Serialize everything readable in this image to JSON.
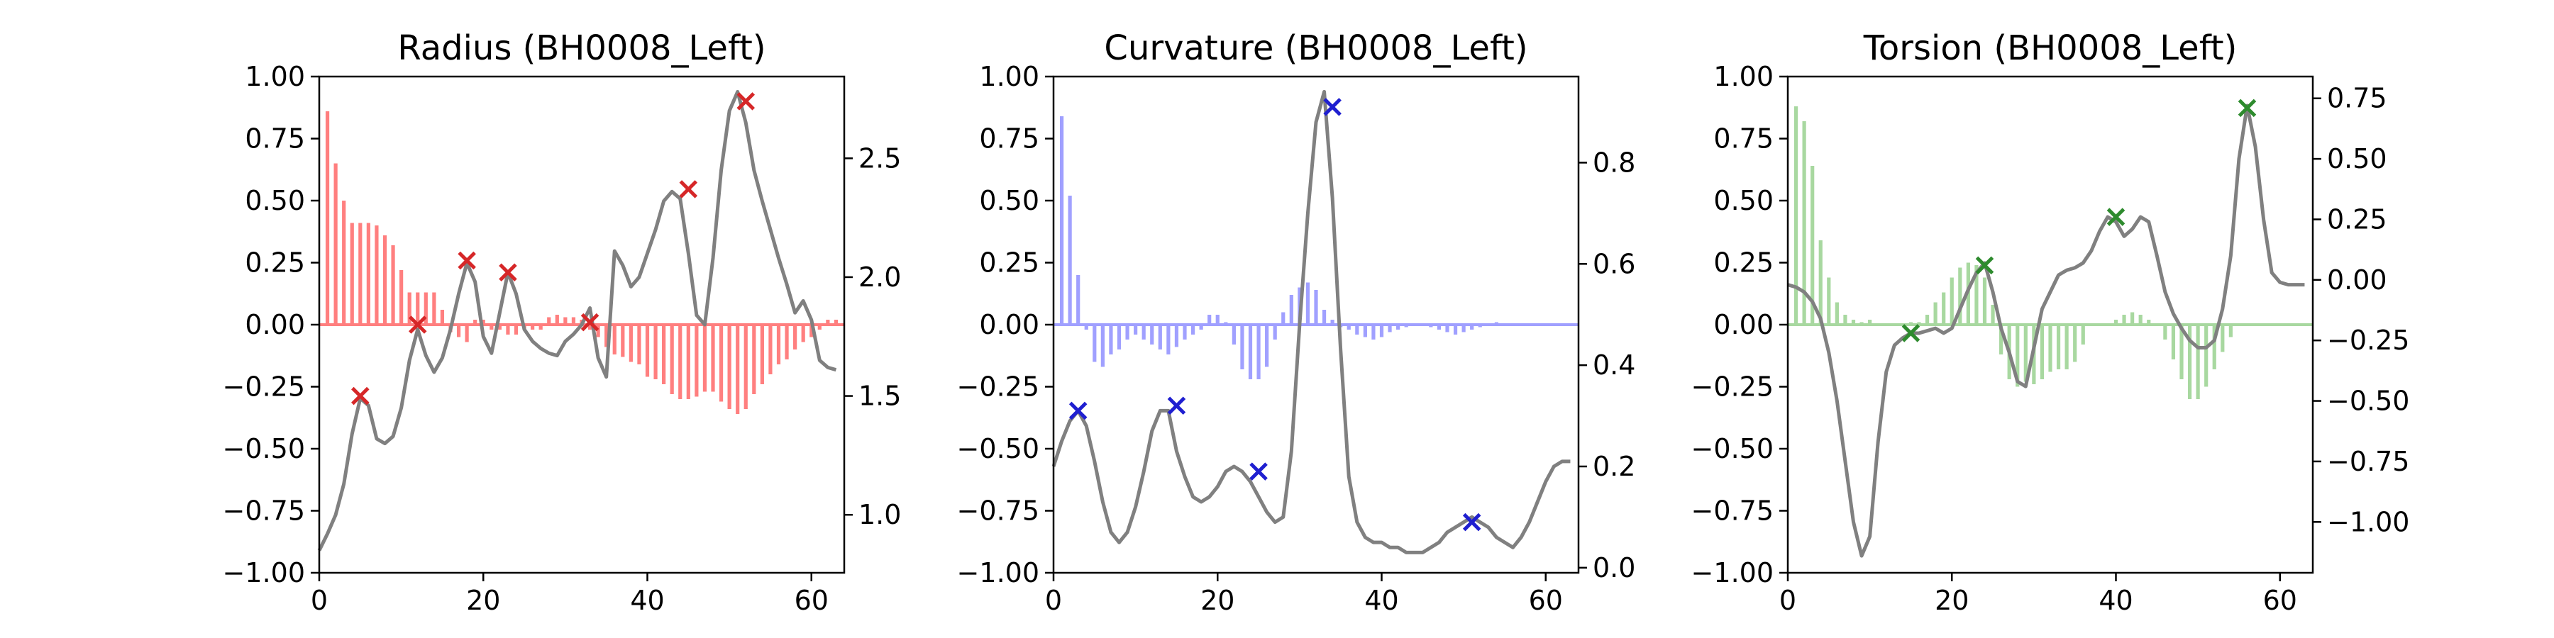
{
  "chart_data": [
    {
      "type": "bar",
      "title": "Radius (BH0008_Left)",
      "xlim": [
        0,
        64
      ],
      "ylim": [
        -1.0,
        1.0
      ],
      "xticks": [
        0,
        20,
        40,
        60
      ],
      "yticks": [
        -1.0,
        -0.75,
        -0.5,
        -0.25,
        0.0,
        0.25,
        0.5,
        0.75,
        1.0
      ],
      "ytick_labels": [
        "−1.00",
        "−0.75",
        "−0.50",
        "−0.25",
        "0.00",
        "0.25",
        "0.50",
        "0.75",
        "1.00"
      ],
      "bar_color": "#ff7f7f",
      "bars": {
        "x": [
          1,
          2,
          3,
          4,
          5,
          6,
          7,
          8,
          9,
          10,
          11,
          12,
          13,
          14,
          15,
          16,
          17,
          18,
          19,
          20,
          21,
          22,
          23,
          24,
          25,
          26,
          27,
          28,
          29,
          30,
          31,
          32,
          33,
          34,
          35,
          36,
          37,
          38,
          39,
          40,
          41,
          42,
          43,
          44,
          45,
          46,
          47,
          48,
          49,
          50,
          51,
          52,
          53,
          54,
          55,
          56,
          57,
          58,
          59,
          60,
          61,
          62,
          63
        ],
        "values": [
          0.86,
          0.65,
          0.5,
          0.41,
          0.41,
          0.41,
          0.4,
          0.36,
          0.32,
          0.22,
          0.13,
          0.13,
          0.13,
          0.13,
          0.06,
          -0.03,
          -0.05,
          -0.07,
          0.02,
          0.02,
          -0.02,
          -0.02,
          -0.04,
          -0.04,
          -0.02,
          -0.02,
          -0.02,
          0.03,
          0.04,
          0.03,
          0.03,
          0.02,
          -0.02,
          -0.05,
          -0.09,
          -0.12,
          -0.13,
          -0.15,
          -0.16,
          -0.21,
          -0.22,
          -0.24,
          -0.28,
          -0.3,
          -0.3,
          -0.29,
          -0.27,
          -0.27,
          -0.31,
          -0.34,
          -0.36,
          -0.34,
          -0.28,
          -0.24,
          -0.2,
          -0.16,
          -0.14,
          -0.1,
          -0.07,
          -0.05,
          -0.02,
          0.02,
          0.02
        ]
      },
      "y2lim": [
        0.756,
        2.844
      ],
      "y2ticks": [
        1.0,
        1.5,
        2.0,
        2.5
      ],
      "y2tick_labels": [
        "1.0",
        "1.5",
        "2.0",
        "2.5"
      ],
      "line_color": "#808080",
      "line": {
        "x": [
          0,
          1,
          2,
          3,
          4,
          5,
          6,
          7,
          8,
          9,
          10,
          11,
          12,
          13,
          14,
          15,
          16,
          17,
          18,
          19,
          20,
          21,
          22,
          23,
          24,
          25,
          26,
          27,
          28,
          29,
          30,
          31,
          32,
          33,
          34,
          35,
          36,
          37,
          38,
          39,
          40,
          41,
          42,
          43,
          44,
          45,
          46,
          47,
          48,
          49,
          50,
          51,
          52,
          53,
          54,
          55,
          56,
          57,
          58,
          59,
          60,
          61,
          62,
          63
        ],
        "y": [
          0.85,
          0.92,
          1.0,
          1.13,
          1.34,
          1.49,
          1.46,
          1.32,
          1.3,
          1.33,
          1.45,
          1.65,
          1.78,
          1.67,
          1.6,
          1.66,
          1.78,
          1.93,
          2.06,
          1.98,
          1.75,
          1.68,
          1.85,
          2.02,
          1.93,
          1.78,
          1.73,
          1.7,
          1.68,
          1.67,
          1.73,
          1.76,
          1.8,
          1.87,
          1.66,
          1.58,
          2.11,
          2.05,
          1.96,
          2.0,
          2.1,
          2.2,
          2.32,
          2.36,
          2.33,
          2.1,
          1.84,
          1.8,
          2.08,
          2.45,
          2.7,
          2.78,
          2.65,
          2.45,
          2.32,
          2.2,
          2.08,
          1.97,
          1.85,
          1.9,
          1.82,
          1.65,
          1.62,
          1.61
        ]
      },
      "marker_color": "#d62728",
      "markers": {
        "x": [
          5,
          12,
          18,
          23,
          33,
          45,
          52
        ],
        "y2": [
          1.5,
          1.8,
          2.07,
          2.02,
          1.81,
          2.37,
          2.74
        ]
      }
    },
    {
      "type": "bar",
      "title": "Curvature (BH0008_Left)",
      "xlim": [
        0,
        64
      ],
      "ylim": [
        -1.0,
        1.0
      ],
      "xticks": [
        0,
        20,
        40,
        60
      ],
      "yticks": [
        -1.0,
        -0.75,
        -0.5,
        -0.25,
        0.0,
        0.25,
        0.5,
        0.75,
        1.0
      ],
      "ytick_labels": [
        "−1.00",
        "−0.75",
        "−0.50",
        "−0.25",
        "0.00",
        "0.25",
        "0.50",
        "0.75",
        "1.00"
      ],
      "bar_color": "#a0a0ff",
      "bars": {
        "x": [
          1,
          2,
          3,
          4,
          5,
          6,
          7,
          8,
          9,
          10,
          11,
          12,
          13,
          14,
          15,
          16,
          17,
          18,
          19,
          20,
          21,
          22,
          23,
          24,
          25,
          26,
          27,
          28,
          29,
          30,
          31,
          32,
          33,
          34,
          35,
          36,
          37,
          38,
          39,
          40,
          41,
          42,
          43,
          44,
          45,
          46,
          47,
          48,
          49,
          50,
          51,
          52,
          53,
          54,
          55,
          56,
          57,
          58,
          59,
          60,
          61,
          62,
          63
        ],
        "values": [
          0.84,
          0.52,
          0.2,
          -0.02,
          -0.15,
          -0.17,
          -0.12,
          -0.1,
          -0.06,
          -0.04,
          -0.06,
          -0.08,
          -0.1,
          -0.12,
          -0.09,
          -0.06,
          -0.04,
          -0.02,
          0.04,
          0.04,
          0.01,
          -0.08,
          -0.18,
          -0.22,
          -0.22,
          -0.17,
          -0.06,
          0.05,
          0.12,
          0.15,
          0.17,
          0.14,
          0.06,
          0.02,
          -0.01,
          -0.02,
          -0.04,
          -0.05,
          -0.06,
          -0.05,
          -0.03,
          -0.02,
          -0.01,
          0.0,
          0.0,
          -0.01,
          -0.02,
          -0.03,
          -0.04,
          -0.03,
          -0.02,
          -0.01,
          0.0,
          0.01,
          0.0,
          0.0,
          0.0,
          0.0,
          0.0,
          0.0,
          0.0,
          0.0,
          0.0
        ]
      },
      "y2lim": [
        -0.01,
        0.97
      ],
      "y2ticks": [
        0.0,
        0.2,
        0.4,
        0.6,
        0.8
      ],
      "y2tick_labels": [
        "0.0",
        "0.2",
        "0.4",
        "0.6",
        "0.8"
      ],
      "line_color": "#808080",
      "line": {
        "x": [
          0,
          1,
          2,
          3,
          4,
          5,
          6,
          7,
          8,
          9,
          10,
          11,
          12,
          13,
          14,
          15,
          16,
          17,
          18,
          19,
          20,
          21,
          22,
          23,
          24,
          25,
          26,
          27,
          28,
          29,
          30,
          31,
          32,
          33,
          34,
          35,
          36,
          37,
          38,
          39,
          40,
          41,
          42,
          43,
          44,
          45,
          46,
          47,
          48,
          49,
          50,
          51,
          52,
          53,
          54,
          55,
          56,
          57,
          58,
          59,
          60,
          61,
          62,
          63
        ],
        "y": [
          0.2,
          0.25,
          0.29,
          0.31,
          0.28,
          0.21,
          0.13,
          0.07,
          0.05,
          0.07,
          0.12,
          0.19,
          0.27,
          0.31,
          0.31,
          0.23,
          0.18,
          0.14,
          0.13,
          0.14,
          0.16,
          0.19,
          0.2,
          0.19,
          0.17,
          0.14,
          0.11,
          0.09,
          0.1,
          0.23,
          0.48,
          0.7,
          0.88,
          0.94,
          0.73,
          0.43,
          0.18,
          0.09,
          0.06,
          0.05,
          0.05,
          0.04,
          0.04,
          0.03,
          0.03,
          0.03,
          0.04,
          0.05,
          0.07,
          0.08,
          0.09,
          0.1,
          0.09,
          0.08,
          0.06,
          0.05,
          0.04,
          0.06,
          0.09,
          0.13,
          0.17,
          0.2,
          0.21,
          0.21
        ]
      },
      "marker_color": "#1f1fd0",
      "markers": {
        "x": [
          3,
          15,
          25,
          34,
          51
        ],
        "y2": [
          0.31,
          0.32,
          0.19,
          0.91,
          0.09
        ]
      }
    },
    {
      "type": "bar",
      "title": "Torsion (BH0008_Left)",
      "xlim": [
        0,
        64
      ],
      "ylim": [
        -1.0,
        1.0
      ],
      "xticks": [
        0,
        20,
        40,
        60
      ],
      "yticks": [
        -1.0,
        -0.75,
        -0.5,
        -0.25,
        0.0,
        0.25,
        0.5,
        0.75,
        1.0
      ],
      "ytick_labels": [
        "−1.00",
        "−0.75",
        "−0.50",
        "−0.25",
        "0.00",
        "0.25",
        "0.50",
        "0.75",
        "1.00"
      ],
      "bar_color": "#a8d8a0",
      "bars": {
        "x": [
          1,
          2,
          3,
          4,
          5,
          6,
          7,
          8,
          9,
          10,
          11,
          12,
          13,
          14,
          15,
          16,
          17,
          18,
          19,
          20,
          21,
          22,
          23,
          24,
          25,
          26,
          27,
          28,
          29,
          30,
          31,
          32,
          33,
          34,
          35,
          36,
          37,
          38,
          39,
          40,
          41,
          42,
          43,
          44,
          45,
          46,
          47,
          48,
          49,
          50,
          51,
          52,
          53,
          54,
          55,
          56,
          57,
          58,
          59,
          60,
          61,
          62,
          63
        ],
        "values": [
          0.88,
          0.82,
          0.64,
          0.34,
          0.19,
          0.09,
          0.04,
          0.02,
          0.01,
          0.02,
          0.0,
          0.0,
          0.0,
          0.0,
          0.01,
          0.01,
          0.04,
          0.09,
          0.13,
          0.19,
          0.23,
          0.25,
          0.24,
          0.19,
          0.08,
          -0.12,
          -0.22,
          -0.25,
          -0.23,
          -0.24,
          -0.22,
          -0.19,
          -0.18,
          -0.18,
          -0.15,
          -0.08,
          0.0,
          0.0,
          0.0,
          0.02,
          0.04,
          0.05,
          0.04,
          0.02,
          0.0,
          -0.06,
          -0.14,
          -0.22,
          -0.3,
          -0.3,
          -0.25,
          -0.18,
          -0.11,
          -0.05,
          0.0,
          0.0,
          0.0,
          0.0,
          0.0,
          0.0,
          0.0,
          0.0,
          0.0
        ]
      },
      "y2lim": [
        -1.21,
        0.84
      ],
      "y2ticks": [
        -1.0,
        -0.75,
        -0.5,
        -0.25,
        0.0,
        0.25,
        0.5,
        0.75
      ],
      "y2tick_labels": [
        "−1.00",
        "−0.75",
        "−0.50",
        "−0.25",
        "0.00",
        "0.25",
        "0.50",
        "0.75"
      ],
      "line_color": "#808080",
      "line": {
        "x": [
          0,
          1,
          2,
          3,
          4,
          5,
          6,
          7,
          8,
          9,
          10,
          11,
          12,
          13,
          14,
          15,
          16,
          17,
          18,
          19,
          20,
          21,
          22,
          23,
          24,
          25,
          26,
          27,
          28,
          29,
          30,
          31,
          32,
          33,
          34,
          35,
          36,
          37,
          38,
          39,
          40,
          41,
          42,
          43,
          44,
          45,
          46,
          47,
          48,
          49,
          50,
          51,
          52,
          53,
          54,
          55,
          56,
          57,
          58,
          59,
          60,
          61,
          62,
          63
        ],
        "y": [
          -0.02,
          -0.03,
          -0.05,
          -0.09,
          -0.16,
          -0.3,
          -0.5,
          -0.75,
          -1.0,
          -1.14,
          -1.06,
          -0.67,
          -0.38,
          -0.27,
          -0.24,
          -0.22,
          -0.22,
          -0.21,
          -0.2,
          -0.22,
          -0.2,
          -0.12,
          -0.04,
          0.03,
          0.07,
          -0.05,
          -0.2,
          -0.3,
          -0.42,
          -0.44,
          -0.28,
          -0.12,
          -0.05,
          0.02,
          0.04,
          0.05,
          0.07,
          0.12,
          0.2,
          0.26,
          0.24,
          0.18,
          0.21,
          0.26,
          0.24,
          0.1,
          -0.05,
          -0.14,
          -0.2,
          -0.25,
          -0.28,
          -0.28,
          -0.25,
          -0.12,
          0.1,
          0.5,
          0.72,
          0.55,
          0.25,
          0.03,
          -0.01,
          -0.02,
          -0.02,
          -0.02
        ]
      },
      "marker_color": "#2e8b2e",
      "markers": {
        "x": [
          15,
          24,
          40,
          56
        ],
        "y2": [
          -0.22,
          0.06,
          0.26,
          0.71
        ]
      }
    }
  ]
}
